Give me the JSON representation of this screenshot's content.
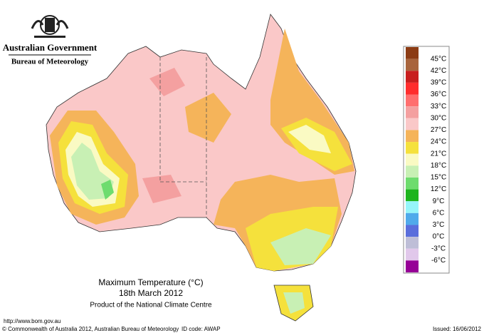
{
  "header": {
    "agency": "Australian Government",
    "bureau": "Bureau of Meteorology"
  },
  "map": {
    "title": "Maximum Temperature (°C)",
    "date": "18th March 2012",
    "product": "Product of the National Climate Centre"
  },
  "legend": {
    "top_color": "#8c3c14",
    "entries": [
      {
        "label": "45°C",
        "color": "#a8643c"
      },
      {
        "label": "42°C",
        "color": "#c81e1e"
      },
      {
        "label": "39°C",
        "color": "#ff2d2d"
      },
      {
        "label": "36°C",
        "color": "#ff6e6e"
      },
      {
        "label": "33°C",
        "color": "#f4a0a0"
      },
      {
        "label": "30°C",
        "color": "#fac8c8"
      },
      {
        "label": "27°C",
        "color": "#f5b45a"
      },
      {
        "label": "24°C",
        "color": "#f5e13c"
      },
      {
        "label": "21°C",
        "color": "#fafac3"
      },
      {
        "label": "18°C",
        "color": "#c8f0b4"
      },
      {
        "label": "15°C",
        "color": "#6edc6e"
      },
      {
        "label": "12°C",
        "color": "#1eb41e"
      },
      {
        "label": "9°C",
        "color": "#96f5fa"
      },
      {
        "label": "6°C",
        "color": "#50aaeb"
      },
      {
        "label": "3°C",
        "color": "#5a6edc"
      },
      {
        "label": "0°C",
        "color": "#bebed7"
      },
      {
        "label": "-3°C",
        "color": "#e1c8eb"
      },
      {
        "label": "-6°C",
        "color": "#ff5aff"
      }
    ],
    "bottom_color": "#960096"
  },
  "footer": {
    "url": "http://www.bom.gov.au",
    "copyright": "© Commonwealth of Australia 2012, Australian Bureau of Meteorology",
    "id_code": "ID code: AWAP",
    "issued": "Issued: 16/06/2012"
  }
}
